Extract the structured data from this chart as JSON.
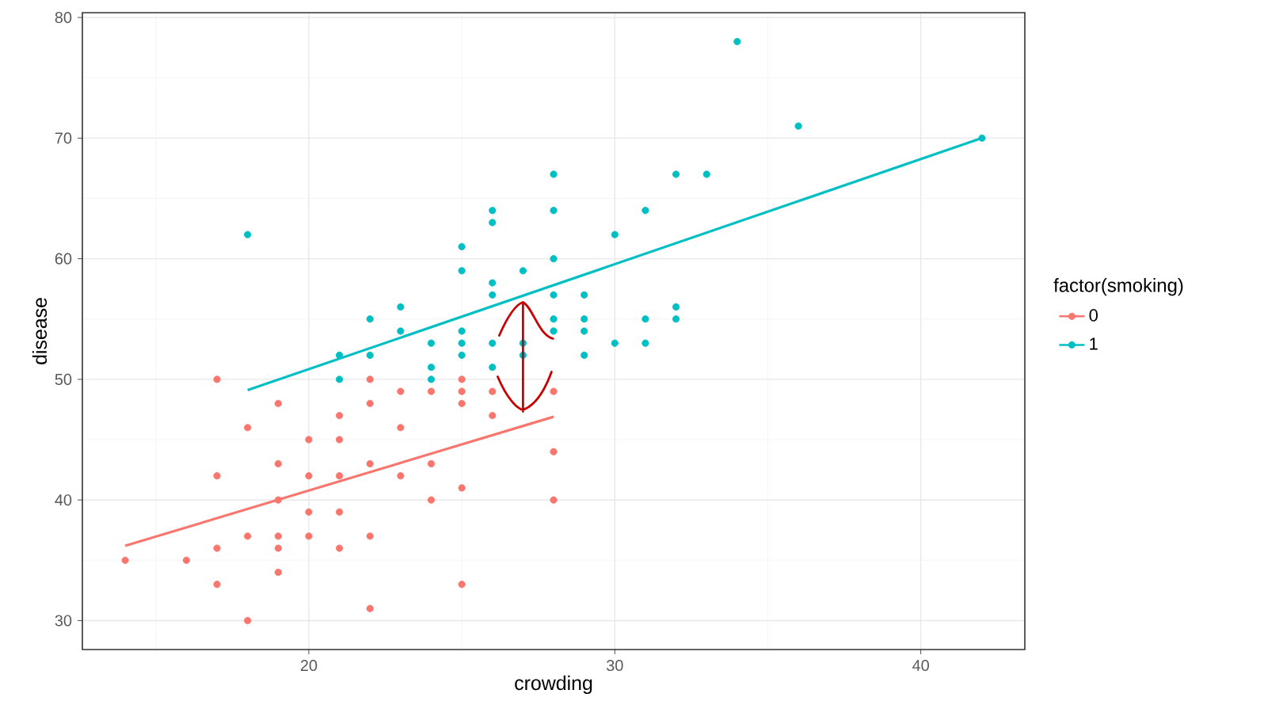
{
  "chart_data": {
    "type": "scatter",
    "xlabel": "crowding",
    "ylabel": "disease",
    "legend_title": "factor(smoking)",
    "xlim": [
      12.6,
      43.4
    ],
    "ylim": [
      27.6,
      80.4
    ],
    "xticks": [
      20,
      30,
      40
    ],
    "yticks": [
      30,
      40,
      50,
      60,
      70,
      80
    ],
    "grid": true,
    "legend": "right",
    "marker": "circle",
    "series": [
      {
        "name": "0",
        "color": "#f8766d",
        "x": [
          14,
          16,
          17,
          17,
          17,
          17,
          18,
          18,
          18,
          19,
          19,
          19,
          19,
          19,
          19,
          20,
          20,
          20,
          20,
          21,
          21,
          21,
          21,
          21,
          22,
          22,
          22,
          22,
          22,
          23,
          23,
          23,
          24,
          24,
          24,
          25,
          25,
          25,
          25,
          25,
          26,
          26,
          28,
          28,
          28
        ],
        "values": [
          35,
          35,
          50,
          42,
          36,
          33,
          46,
          37,
          30,
          48,
          43,
          40,
          37,
          36,
          34,
          45,
          42,
          39,
          37,
          47,
          45,
          42,
          39,
          36,
          50,
          48,
          43,
          37,
          31,
          49,
          46,
          42,
          49,
          43,
          40,
          50,
          49,
          48,
          41,
          33,
          49,
          47,
          49,
          44,
          40
        ]
      },
      {
        "name": "1",
        "color": "#00bfc4",
        "x": [
          18,
          21,
          21,
          22,
          22,
          23,
          23,
          24,
          24,
          24,
          25,
          25,
          25,
          25,
          25,
          26,
          26,
          26,
          26,
          26,
          26,
          27,
          27,
          27,
          28,
          28,
          28,
          28,
          28,
          28,
          29,
          29,
          29,
          29,
          30,
          30,
          31,
          31,
          31,
          32,
          32,
          32,
          33,
          34,
          36,
          42
        ],
        "values": [
          62,
          52,
          50,
          55,
          52,
          56,
          54,
          53,
          51,
          50,
          61,
          59,
          54,
          53,
          52,
          64,
          63,
          58,
          57,
          53,
          51,
          59,
          53,
          52,
          67,
          64,
          60,
          57,
          55,
          54,
          57,
          55,
          54,
          52,
          62,
          53,
          64,
          55,
          53,
          67,
          56,
          55,
          67,
          78,
          71,
          70
        ]
      },
      {
        "type": "line",
        "marker": "none",
        "color": "#f8766d",
        "x": [
          14,
          28
        ],
        "values": [
          36.2,
          46.9
        ]
      },
      {
        "type": "line",
        "marker": "none",
        "color": "#00bfc4",
        "x": [
          18,
          42
        ],
        "values": [
          49.1,
          70.0
        ]
      }
    ]
  }
}
